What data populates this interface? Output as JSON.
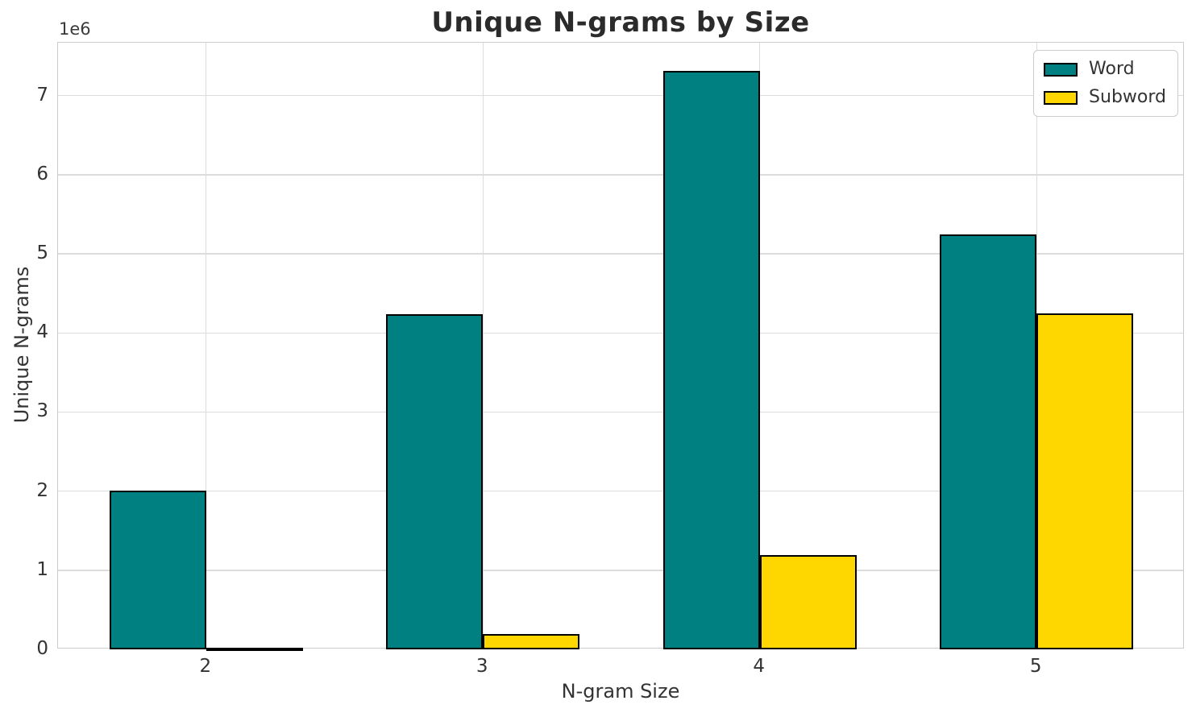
{
  "chart_data": {
    "type": "bar",
    "title": "Unique N-grams by Size",
    "xlabel": "N-gram Size",
    "ylabel": "Unique N-grams",
    "y_offset_label": "1e6",
    "categories": [
      "2",
      "3",
      "4",
      "5"
    ],
    "x_positions": [
      2,
      3,
      4,
      5
    ],
    "series": [
      {
        "name": "Word",
        "color": "#008080",
        "values": [
          2010000,
          4240000,
          7310000,
          5250000
        ]
      },
      {
        "name": "Subword",
        "color": "#FFD700",
        "values": [
          25000,
          190000,
          1190000,
          4250000
        ]
      }
    ],
    "bar_edge_color": "#000000",
    "bar_width_units": 0.35,
    "xlim": [
      1.465,
      5.535
    ],
    "ylim": [
      0,
      7670000
    ],
    "yticks": [
      0,
      1,
      2,
      3,
      4,
      5,
      6,
      7
    ],
    "y_multiplier": 1000000,
    "grid": true,
    "legend_position": "upper right",
    "legend_entries": [
      "Word",
      "Subword"
    ]
  }
}
